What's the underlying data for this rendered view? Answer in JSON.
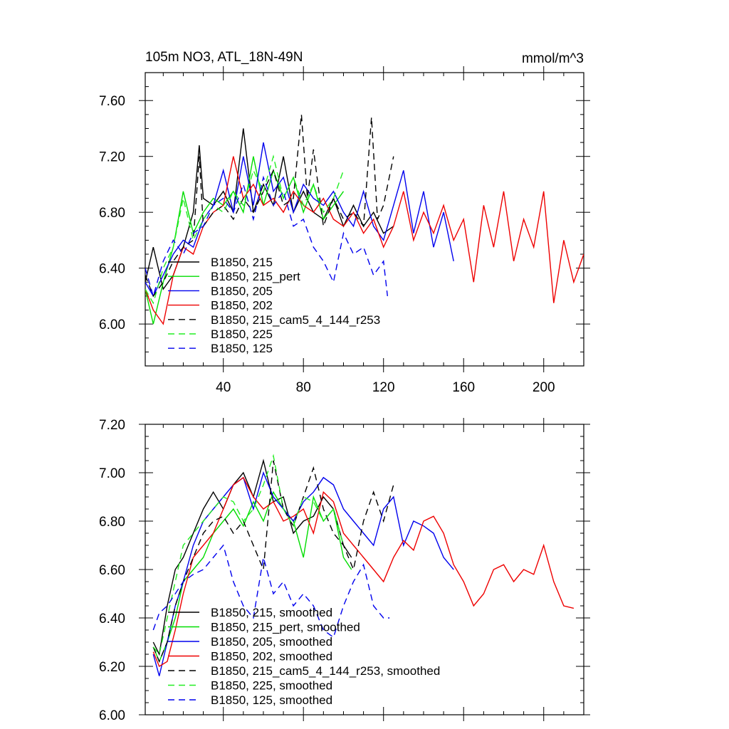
{
  "chart_data": [
    {
      "type": "line",
      "title": "105m NO3, ATL_18N-49N",
      "units": "mmol/m^3",
      "xlim": [
        1,
        220
      ],
      "ylim": [
        5.7,
        7.8
      ],
      "xticks": [
        40,
        80,
        120,
        160,
        200
      ],
      "xtick_labels": [
        "40",
        "80",
        "120",
        "160",
        "200"
      ],
      "yticks": [
        6.0,
        6.4,
        6.8,
        7.2,
        7.6
      ],
      "ytick_labels": [
        "6.00",
        "6.40",
        "6.80",
        "7.20",
        "7.60"
      ],
      "legend_location": "lower-left",
      "series": [
        {
          "name": "B1850, 215",
          "color": "#000000",
          "dash": "solid",
          "x": [
            1,
            5,
            10,
            15,
            20,
            25,
            28,
            30,
            35,
            40,
            45,
            50,
            55,
            60,
            65,
            70,
            75,
            80,
            85,
            90,
            95,
            100,
            105,
            110,
            115,
            120,
            125
          ],
          "y": [
            6.3,
            6.55,
            6.25,
            6.35,
            6.55,
            6.8,
            7.28,
            6.9,
            6.85,
            6.95,
            6.8,
            7.4,
            6.8,
            7.0,
            6.85,
            7.2,
            6.8,
            6.95,
            6.8,
            6.75,
            6.9,
            6.7,
            6.85,
            6.7,
            6.8,
            6.65,
            6.7
          ]
        },
        {
          "name": "B1850, 215_pert",
          "color": "#00dd00",
          "dash": "solid",
          "x": [
            1,
            5,
            10,
            15,
            20,
            25,
            30,
            35,
            40,
            45,
            50,
            55,
            60,
            65,
            70,
            75,
            80,
            85,
            90,
            95,
            100
          ],
          "y": [
            6.25,
            6.0,
            6.3,
            6.55,
            6.95,
            6.65,
            6.8,
            6.9,
            6.85,
            6.95,
            6.8,
            7.2,
            6.85,
            7.1,
            6.9,
            7.05,
            6.8,
            7.0,
            6.75,
            6.85,
            6.95
          ]
        },
        {
          "name": "B1850, 205",
          "color": "#0000ee",
          "dash": "solid",
          "x": [
            1,
            5,
            10,
            15,
            20,
            25,
            30,
            35,
            40,
            45,
            50,
            55,
            60,
            65,
            70,
            75,
            80,
            85,
            90,
            95,
            100,
            105,
            110,
            115,
            120,
            125,
            130,
            135,
            140,
            145,
            150,
            155
          ],
          "y": [
            6.3,
            6.2,
            6.35,
            6.5,
            6.6,
            6.55,
            6.75,
            6.85,
            7.1,
            6.8,
            7.2,
            6.85,
            7.3,
            6.95,
            7.05,
            6.8,
            7.0,
            6.9,
            6.85,
            6.95,
            6.8,
            6.7,
            6.95,
            6.7,
            6.6,
            6.85,
            7.1,
            6.65,
            6.95,
            6.55,
            6.8,
            6.45
          ]
        },
        {
          "name": "B1850, 202",
          "color": "#ee0000",
          "dash": "solid",
          "x": [
            1,
            5,
            10,
            15,
            20,
            25,
            30,
            35,
            40,
            45,
            50,
            55,
            60,
            65,
            70,
            75,
            80,
            85,
            90,
            95,
            100,
            105,
            110,
            115,
            120,
            125,
            130,
            135,
            140,
            145,
            150,
            155,
            160,
            165,
            170,
            175,
            180,
            185,
            190,
            195,
            200,
            205,
            210,
            215,
            220
          ],
          "y": [
            6.25,
            6.1,
            6.0,
            6.35,
            6.55,
            6.5,
            6.7,
            6.8,
            6.85,
            7.2,
            6.9,
            7.0,
            6.85,
            6.9,
            6.8,
            6.95,
            6.85,
            6.8,
            6.9,
            6.75,
            6.7,
            6.8,
            6.65,
            6.75,
            6.55,
            6.7,
            6.95,
            6.6,
            6.8,
            6.65,
            6.85,
            6.6,
            6.75,
            6.3,
            6.85,
            6.55,
            6.95,
            6.45,
            6.75,
            6.55,
            6.95,
            6.15,
            6.6,
            6.3,
            6.5
          ]
        },
        {
          "name": "B1850, 215_cam5_4_144_r253",
          "color": "#000000",
          "dash": "dashed",
          "x": [
            1,
            5,
            10,
            15,
            20,
            25,
            28,
            30,
            35,
            40,
            45,
            50,
            55,
            60,
            65,
            70,
            75,
            79,
            82,
            85,
            90,
            95,
            100,
            105,
            110,
            114,
            117,
            120,
            125
          ],
          "y": [
            6.35,
            6.2,
            6.3,
            6.45,
            6.55,
            6.6,
            7.2,
            6.7,
            6.8,
            6.85,
            6.75,
            6.9,
            6.8,
            6.95,
            7.1,
            6.85,
            6.9,
            7.5,
            6.9,
            7.25,
            6.7,
            6.9,
            6.75,
            6.8,
            6.7,
            7.48,
            6.75,
            6.85,
            7.2
          ]
        },
        {
          "name": "B1850, 225",
          "color": "#22ee22",
          "dash": "dashed",
          "x": [
            1,
            5,
            10,
            15,
            20,
            25,
            30,
            35,
            40,
            45,
            50,
            55,
            60,
            65,
            70,
            75,
            80,
            85,
            90,
            95,
            100
          ],
          "y": [
            6.25,
            6.15,
            6.4,
            6.55,
            6.9,
            6.6,
            6.75,
            6.85,
            6.8,
            6.95,
            6.85,
            7.1,
            6.95,
            7.2,
            6.9,
            7.05,
            6.85,
            7.0,
            6.8,
            6.9,
            7.1
          ]
        },
        {
          "name": "B1850, 125",
          "color": "#0000ee",
          "dash": "dashed",
          "x": [
            1,
            5,
            10,
            15,
            20,
            25,
            30,
            35,
            40,
            45,
            50,
            55,
            60,
            65,
            70,
            75,
            80,
            85,
            90,
            95,
            100,
            105,
            110,
            115,
            120,
            122
          ],
          "y": [
            6.4,
            6.2,
            6.45,
            6.6,
            6.5,
            6.65,
            6.7,
            6.85,
            6.9,
            6.8,
            7.0,
            6.75,
            7.05,
            6.85,
            6.95,
            6.7,
            6.75,
            6.55,
            6.45,
            6.3,
            6.65,
            6.5,
            6.55,
            6.35,
            6.45,
            6.2
          ]
        }
      ]
    },
    {
      "type": "line",
      "title": "",
      "xlim": [
        1,
        220
      ],
      "ylim": [
        6.0,
        7.2
      ],
      "xticks": [
        40,
        80,
        120,
        160,
        200
      ],
      "xtick_labels": [],
      "yticks": [
        6.0,
        6.2,
        6.4,
        6.6,
        6.8,
        7.0,
        7.2
      ],
      "ytick_labels": [
        "6.00",
        "6.20",
        "6.40",
        "6.60",
        "6.80",
        "7.00",
        "7.20"
      ],
      "legend_location": "lower-left",
      "series": [
        {
          "name": "B1850, 215, smoothed",
          "color": "#000000",
          "dash": "solid",
          "x": [
            5,
            8,
            12,
            16,
            20,
            25,
            30,
            35,
            40,
            45,
            50,
            55,
            60,
            65,
            70,
            75,
            80,
            85,
            90,
            95,
            100,
            104
          ],
          "y": [
            6.3,
            6.25,
            6.45,
            6.6,
            6.65,
            6.75,
            6.85,
            6.92,
            6.85,
            6.95,
            7.0,
            6.9,
            7.05,
            6.88,
            6.9,
            6.75,
            6.8,
            6.82,
            6.9,
            6.85,
            6.7,
            6.65
          ]
        },
        {
          "name": "B1850, 215_pert, smoothed",
          "color": "#00dd00",
          "dash": "solid",
          "x": [
            5,
            8,
            12,
            16,
            20,
            25,
            30,
            35,
            40,
            45,
            50,
            55,
            60,
            65,
            70,
            75,
            80,
            85,
            90,
            95,
            100,
            104
          ],
          "y": [
            6.28,
            6.22,
            6.3,
            6.4,
            6.55,
            6.6,
            6.65,
            6.75,
            6.8,
            6.85,
            6.78,
            6.88,
            6.8,
            6.92,
            6.85,
            6.8,
            6.65,
            6.9,
            6.8,
            6.85,
            6.65,
            6.6
          ]
        },
        {
          "name": "B1850, 205, smoothed",
          "color": "#0000ee",
          "dash": "solid",
          "x": [
            5,
            8,
            12,
            16,
            20,
            25,
            30,
            35,
            40,
            45,
            50,
            55,
            60,
            65,
            70,
            75,
            80,
            85,
            90,
            95,
            100,
            105,
            110,
            115,
            120,
            125,
            130,
            135,
            140,
            145,
            150,
            155
          ],
          "y": [
            6.25,
            6.16,
            6.3,
            6.45,
            6.55,
            6.7,
            6.8,
            6.85,
            6.9,
            6.95,
            6.98,
            6.85,
            7.0,
            6.9,
            6.85,
            6.8,
            6.88,
            6.92,
            6.98,
            6.95,
            6.85,
            6.8,
            6.75,
            6.7,
            6.85,
            6.9,
            6.7,
            6.8,
            6.78,
            6.75,
            6.65,
            6.6
          ]
        },
        {
          "name": "B1850, 202, smoothed",
          "color": "#ee0000",
          "dash": "solid",
          "x": [
            5,
            8,
            12,
            16,
            20,
            25,
            30,
            35,
            40,
            45,
            50,
            55,
            60,
            65,
            70,
            75,
            80,
            85,
            90,
            95,
            100,
            105,
            110,
            115,
            120,
            125,
            130,
            135,
            140,
            145,
            150,
            155,
            160,
            165,
            170,
            175,
            180,
            185,
            190,
            195,
            200,
            205,
            210,
            215
          ],
          "y": [
            6.26,
            6.2,
            6.22,
            6.35,
            6.5,
            6.65,
            6.7,
            6.75,
            6.85,
            6.95,
            6.98,
            6.9,
            6.85,
            6.88,
            6.8,
            6.82,
            6.85,
            6.75,
            6.92,
            6.88,
            6.75,
            6.7,
            6.65,
            6.6,
            6.55,
            6.65,
            6.72,
            6.68,
            6.8,
            6.82,
            6.75,
            6.62,
            6.55,
            6.45,
            6.5,
            6.6,
            6.62,
            6.55,
            6.6,
            6.58,
            6.7,
            6.55,
            6.45,
            6.44
          ]
        },
        {
          "name": "B1850, 215_cam5_4_144_r253, smoothed",
          "color": "#000000",
          "dash": "dashed",
          "x": [
            5,
            8,
            12,
            16,
            20,
            25,
            30,
            35,
            40,
            45,
            50,
            55,
            60,
            65,
            70,
            75,
            80,
            85,
            90,
            95,
            100,
            105,
            110,
            115,
            120,
            125
          ],
          "y": [
            6.28,
            6.22,
            6.3,
            6.45,
            6.55,
            6.65,
            6.75,
            6.8,
            6.82,
            6.75,
            6.8,
            6.7,
            6.6,
            7.05,
            6.85,
            6.78,
            6.9,
            7.02,
            6.85,
            6.75,
            6.7,
            6.6,
            6.8,
            6.92,
            6.8,
            6.95
          ]
        },
        {
          "name": "B1850, 225, smoothed",
          "color": "#22ee22",
          "dash": "dashed",
          "x": [
            5,
            8,
            12,
            16,
            20,
            25,
            30,
            35,
            40,
            45,
            50,
            55,
            60,
            65,
            70,
            75,
            80,
            85,
            90,
            95,
            100
          ],
          "y": [
            6.28,
            6.25,
            6.4,
            6.55,
            6.7,
            6.75,
            6.8,
            6.85,
            6.9,
            6.88,
            6.8,
            6.85,
            6.95,
            7.07,
            6.85,
            6.78,
            6.9,
            6.88,
            6.8,
            6.85,
            6.7
          ]
        },
        {
          "name": "B1850, 125, smoothed",
          "color": "#0000ee",
          "dash": "dashed",
          "x": [
            5,
            8,
            12,
            16,
            20,
            25,
            30,
            35,
            40,
            45,
            50,
            55,
            60,
            65,
            70,
            75,
            80,
            85,
            90,
            95,
            100,
            105,
            110,
            115,
            120,
            123
          ],
          "y": [
            6.35,
            6.42,
            6.45,
            6.5,
            6.55,
            6.58,
            6.6,
            6.65,
            6.7,
            6.55,
            6.45,
            6.4,
            6.65,
            6.5,
            6.55,
            6.45,
            6.5,
            6.45,
            6.35,
            6.32,
            6.45,
            6.55,
            6.62,
            6.45,
            6.4,
            6.4
          ]
        }
      ]
    }
  ]
}
